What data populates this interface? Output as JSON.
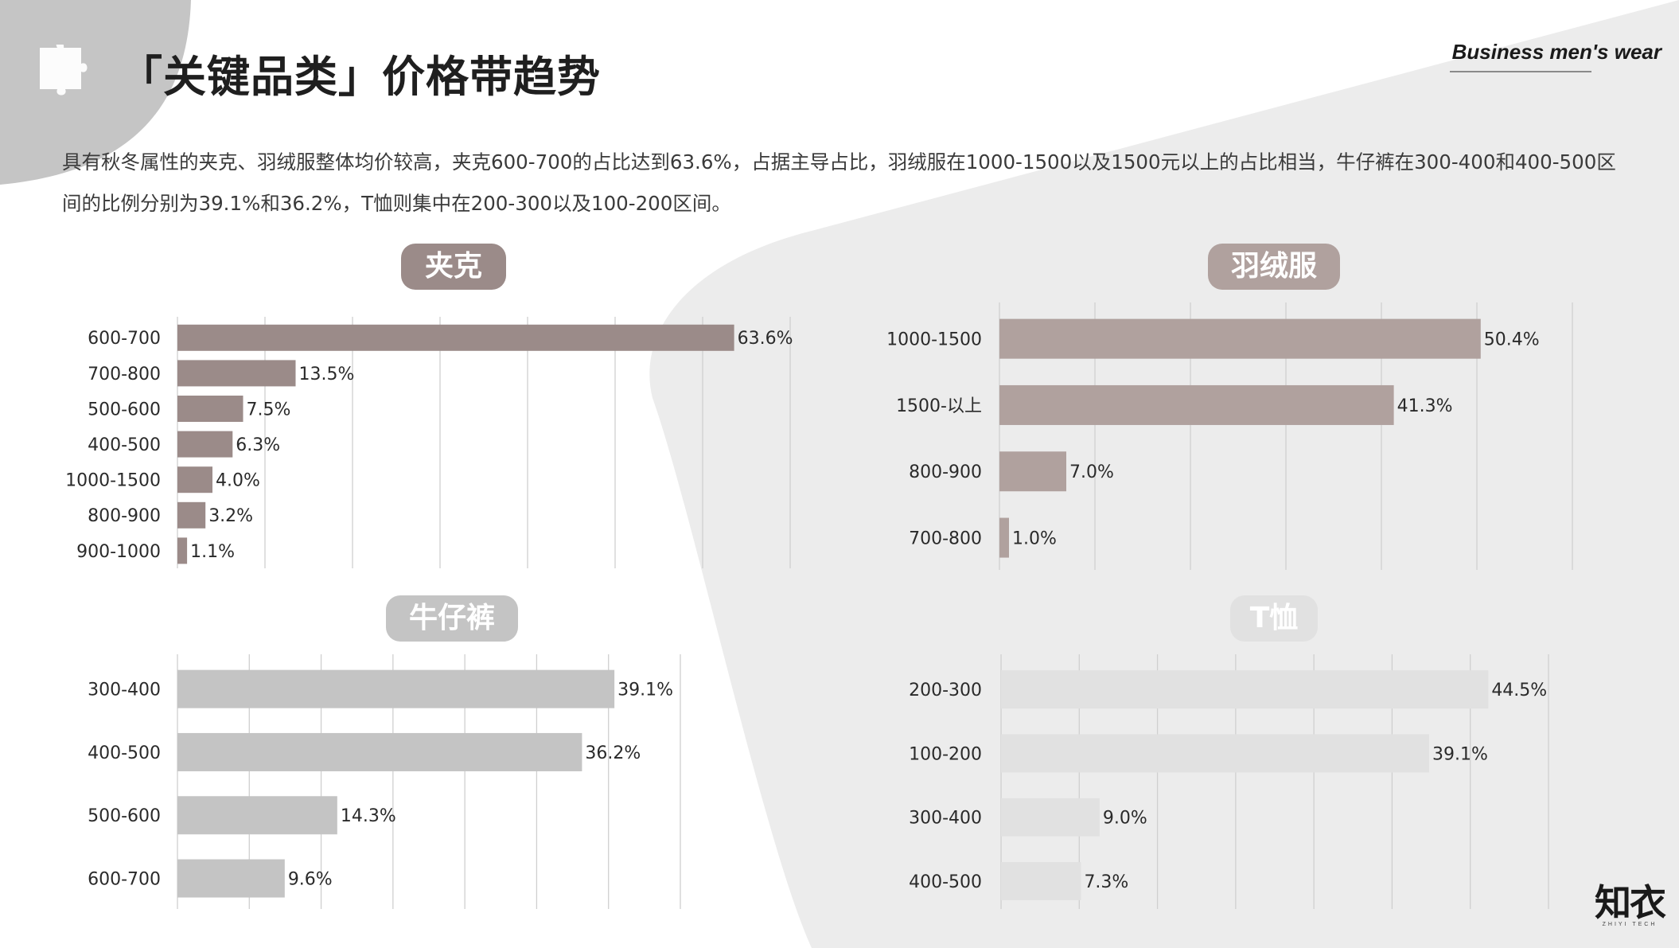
{
  "header": {
    "title": "「关键品类」价格带趋势",
    "brand": "Business men's wear"
  },
  "description": "具有秋冬属性的夹克、羽绒服整体均价较高，夹克600-700的占比达到63.6%，占据主导占比，羽绒服在1000-1500以及1500元以上的占比相当，牛仔裤在300-400和400-500区间的比例分别为39.1%和36.2%，T恤则集中在200-300以及100-200区间。",
  "logo": {
    "main": "知衣",
    "sub": "ZHIYI TECH"
  },
  "watermark": "知衣",
  "colors": {
    "jacket": "#9b8b89",
    "down": "#b0a19e",
    "jeans": "#c4c4c4",
    "tshirt": "#e1e1e1",
    "background_shape": "#ececec",
    "corner_shape": "#c5c5c5"
  },
  "chart_data": [
    {
      "type": "bar",
      "orientation": "horizontal",
      "title": "夹克",
      "categories": [
        "600-700",
        "700-800",
        "500-600",
        "400-500",
        "1000-1500",
        "800-900",
        "900-1000"
      ],
      "values": [
        63.6,
        13.5,
        7.5,
        6.3,
        4.0,
        3.2,
        1.1
      ],
      "labels": [
        "63.6%",
        "13.5%",
        "7.5%",
        "6.3%",
        "4.0%",
        "3.2%",
        "1.1%"
      ],
      "xlim": [
        0,
        70
      ],
      "grid": true,
      "color": "#9b8b89"
    },
    {
      "type": "bar",
      "orientation": "horizontal",
      "title": "羽绒服",
      "categories": [
        "1000-1500",
        "1500-以上",
        "800-900",
        "700-800"
      ],
      "values": [
        50.4,
        41.3,
        7.0,
        1.0
      ],
      "labels": [
        "50.4%",
        "41.3%",
        "7.0%",
        "1.0%"
      ],
      "xlim": [
        0,
        60
      ],
      "grid": true,
      "color": "#b0a19e"
    },
    {
      "type": "bar",
      "orientation": "horizontal",
      "title": "牛仔裤",
      "categories": [
        "300-400",
        "400-500",
        "500-600",
        "600-700"
      ],
      "values": [
        39.1,
        36.2,
        14.3,
        9.6
      ],
      "labels": [
        "39.1%",
        "36.2%",
        "14.3%",
        "9.6%"
      ],
      "xlim": [
        0,
        45
      ],
      "grid": true,
      "color": "#c4c4c4"
    },
    {
      "type": "bar",
      "orientation": "horizontal",
      "title": "T恤",
      "categories": [
        "200-300",
        "100-200",
        "300-400",
        "400-500"
      ],
      "values": [
        44.5,
        39.1,
        9.0,
        7.3
      ],
      "labels": [
        "44.5%",
        "39.1%",
        "9.0%",
        "7.3%"
      ],
      "xlim": [
        0,
        50
      ],
      "grid": true,
      "color": "#e1e1e1"
    }
  ]
}
